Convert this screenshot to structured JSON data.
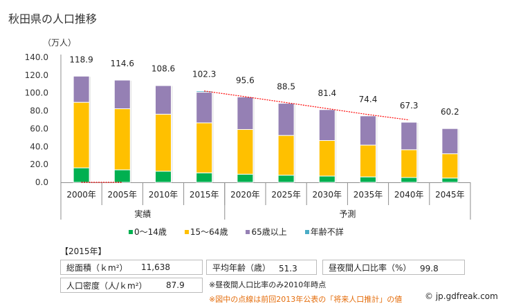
{
  "page": {
    "title": "秋田県の人口推移",
    "unit_label": "（万人）"
  },
  "colors": {
    "age_0_14": "#00b050",
    "age_15_64": "#ffc000",
    "age_65_plus": "#9580b4",
    "age_unknown": "#4bacc6",
    "previous_projection_line": "#ff0000",
    "note_orange": "#e46c0a"
  },
  "chart_data": {
    "type": "bar",
    "stacked": true,
    "title": "秋田県の人口推移",
    "ylabel": "（万人）",
    "xlabel": "",
    "ylim": [
      0,
      140
    ],
    "yticks": [
      "0.0",
      "20.0",
      "40.0",
      "60.0",
      "80.0",
      "100.0",
      "120.0",
      "140.0"
    ],
    "ytick_values": [
      0,
      20,
      40,
      60,
      80,
      100,
      120,
      140
    ],
    "grid": false,
    "categories": [
      "2000年",
      "2005年",
      "2010年",
      "2015年",
      "2020年",
      "2025年",
      "2030年",
      "2035年",
      "2040年",
      "2045年"
    ],
    "groups": [
      {
        "label": "実績",
        "count": 4
      },
      {
        "label": "予測",
        "count": 6
      }
    ],
    "series": [
      {
        "name": "0〜14歳",
        "key": "age_0_14",
        "values": [
          16.2,
          14.0,
          12.4,
          10.6,
          9.1,
          8.0,
          7.0,
          6.1,
          5.4,
          4.8
        ]
      },
      {
        "name": "15〜64歳",
        "key": "age_15_64",
        "values": [
          73.4,
          68.4,
          63.9,
          56.0,
          50.1,
          44.5,
          39.8,
          35.6,
          31.1,
          27.2
        ]
      },
      {
        "name": "65歳以上",
        "key": "age_65_plus",
        "values": [
          29.3,
          32.1,
          32.1,
          34.3,
          36.4,
          36.0,
          34.6,
          32.7,
          30.8,
          28.2
        ]
      },
      {
        "name": "年齢不詳",
        "key": "age_unknown",
        "values": [
          0.0,
          0.1,
          0.2,
          1.4,
          0,
          0,
          0,
          0,
          0,
          0
        ]
      }
    ],
    "totals": [
      "118.9",
      "114.6",
      "108.6",
      "102.3",
      "95.6",
      "88.5",
      "81.4",
      "74.4",
      "67.3",
      "60.2"
    ],
    "previous_projection": {
      "name": "前回2013年公表の「将来人口推計」",
      "style": "dotted",
      "values": [
        0,
        0,
        null,
        102.3,
        95.9,
        89.3,
        82.6,
        75.9,
        69.9,
        null
      ]
    },
    "legend_position": "bottom"
  },
  "legend": [
    {
      "label": "0〜14歳",
      "color_key": "age_0_14"
    },
    {
      "label": "15〜64歳",
      "color_key": "age_15_64"
    },
    {
      "label": "65歳以上",
      "color_key": "age_65_plus"
    },
    {
      "label": "年齢不詳",
      "color_key": "age_unknown"
    }
  ],
  "stats": {
    "year_header": "【2015年】",
    "area_label": "総面積（ｋm²）",
    "area_value": "11,638",
    "avg_age_label": "平均年齢（歳）",
    "avg_age_value": "51.3",
    "daynight_label": "昼夜間人口比率（%）",
    "daynight_value": "99.8",
    "density_label": "人口密度（人/ｋm²）",
    "density_value": "87.9"
  },
  "notes": {
    "note1": "※昼夜間人口比率のみ2010年時点",
    "note2": "※図中の点線は前回2013年公表の「将来人口推計」の値",
    "copyright": "© jp.gdfreak.com"
  }
}
